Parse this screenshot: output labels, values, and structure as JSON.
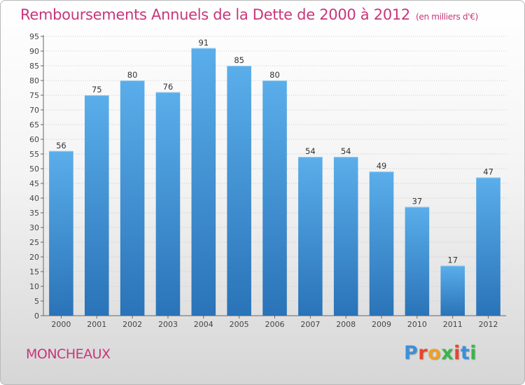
{
  "title": "Remboursements Annuels de la Dette de 2000 à 2012",
  "unit_note": "(en milliers d'€)",
  "commune": "MONCHEAUX",
  "logo": {
    "text": "Proxiti",
    "letter_colors": [
      "#3d8fd8",
      "#e8452c",
      "#f0a020",
      "#3ab54a",
      "#e8452c",
      "#3d8fd8",
      "#3ab54a"
    ]
  },
  "colors": {
    "title": "#c8367a",
    "bar_top": "#5aaeea",
    "bar_bottom": "#2a73b8",
    "grid": "#cccccc"
  },
  "chart_data": {
    "type": "bar",
    "categories": [
      "2000",
      "2001",
      "2002",
      "2003",
      "2004",
      "2005",
      "2006",
      "2007",
      "2008",
      "2009",
      "2010",
      "2011",
      "2012"
    ],
    "values": [
      56,
      75,
      80,
      76,
      91,
      85,
      80,
      54,
      54,
      49,
      37,
      17,
      47
    ],
    "ylim": [
      0,
      95
    ],
    "yticks": [
      0,
      5,
      10,
      15,
      20,
      25,
      30,
      35,
      40,
      45,
      50,
      55,
      60,
      65,
      70,
      75,
      80,
      85,
      90,
      95
    ],
    "grid": true,
    "data_labels": true,
    "xlabel": "",
    "ylabel": ""
  }
}
